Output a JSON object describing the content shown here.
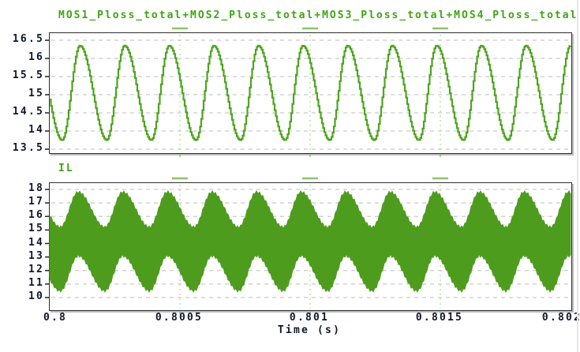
{
  "window": {
    "time_axis_label": "Time (s)"
  },
  "colors": {
    "title_green": "#3ea513",
    "waveform_line": "#4ea41f",
    "waveform_fill": "#4e9c1e",
    "h_grid": "#c9c9c9",
    "v_grid": "#bfdfa8",
    "axis_text": "#10162e",
    "plot_border": "#2e2e2e"
  },
  "chart_data": [
    {
      "type": "line",
      "title": "MOS1_Ploss_total+MOS2_Ploss_total+MOS3_Ploss_total+MOS4_Ploss_total",
      "xlabel": "Time (s)",
      "x_range": [
        0.8,
        0.802
      ],
      "x_ticks": [
        0.8,
        0.8005,
        0.801,
        0.8015,
        0.802
      ],
      "x_tick_labels": [
        "0.8",
        "0.8005",
        "0.801",
        "0.8015",
        "0.802"
      ],
      "y_ticks": [
        16.5,
        16,
        15.5,
        15,
        14.5,
        14,
        13.5
      ],
      "y_tick_labels": [
        "16.5",
        "16",
        "15.5",
        "15",
        "14.5",
        "14",
        "13.5"
      ],
      "ylim": [
        13.4,
        16.7
      ],
      "grid": true,
      "legend_position": "top-left",
      "series": [
        {
          "name": "MOS1_Ploss_total+MOS2_Ploss_total+MOS3_Ploss_total+MOS4_Ploss_total",
          "waveform": {
            "shape": "skewed-sine-staircase",
            "mean": 15.05,
            "amplitude": 1.3,
            "max": 16.35,
            "min": 13.75,
            "cycles_visible": 11.7,
            "first_peak_frac": 0.0575,
            "fall_fraction": 0.6
          }
        }
      ]
    },
    {
      "type": "area-band",
      "title": "IL",
      "xlabel": "Time (s)",
      "x_range": [
        0.8,
        0.802
      ],
      "x_ticks": [
        0.8,
        0.8005,
        0.801,
        0.8015,
        0.802
      ],
      "x_tick_labels": [
        "0.8",
        "0.8005",
        "0.801",
        "0.8015",
        "0.802"
      ],
      "y_ticks": [
        18,
        17,
        16,
        15,
        14,
        13,
        12,
        11,
        10
      ],
      "y_tick_labels": [
        "18",
        "17",
        "16",
        "15",
        "14",
        "13",
        "12",
        "11",
        "10"
      ],
      "ylim": [
        9.1,
        18.5
      ],
      "grid": true,
      "legend_position": "top-left",
      "series": [
        {
          "name": "IL",
          "waveform": {
            "shape": "sine-with-hf-ripple",
            "envelope_mean": 14.15,
            "envelope_amplitude": 1.3,
            "ripple_half_width": 2.35,
            "top_edge_range": [
              15.2,
              17.8
            ],
            "bottom_edge_range": [
              10.5,
              13.1
            ],
            "cycles_visible": 11.7,
            "first_peak_frac": 0.0545,
            "fall_fraction": 0.6
          }
        }
      ]
    }
  ]
}
